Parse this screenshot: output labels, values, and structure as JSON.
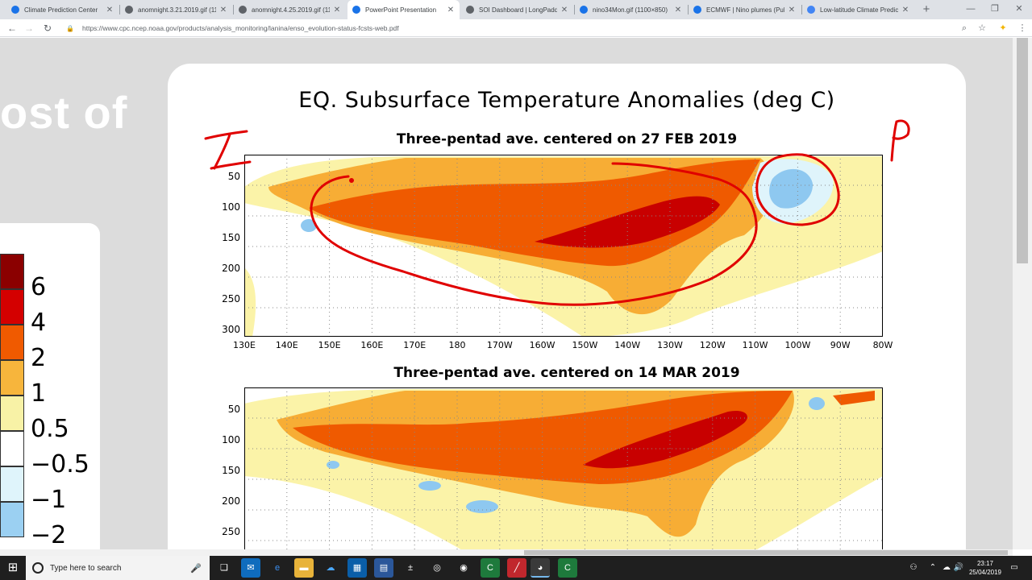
{
  "browser": {
    "tabs": [
      {
        "title": "Climate Prediction Center",
        "favicon_color": "#1a73e8",
        "active": false
      },
      {
        "title": "anomnight.3.21.2019.gif (11...",
        "favicon_color": "#5f6368",
        "active": false
      },
      {
        "title": "anomnight.4.25.2019.gif (11...",
        "favicon_color": "#5f6368",
        "active": false
      },
      {
        "title": "PowerPoint Presentation",
        "favicon_color": "#1a73e8",
        "active": true
      },
      {
        "title": "SOI Dashboard | LongPaddock",
        "favicon_color": "#5f6368",
        "active": false
      },
      {
        "title": "nino34Mon.gif (1100×850)",
        "favicon_color": "#1a73e8",
        "active": false
      },
      {
        "title": "ECMWF | Nino plumes (Pub...",
        "favicon_color": "#1a73e8",
        "active": false
      },
      {
        "title": "Low-latitude Climate Predic...",
        "favicon_color": "#4285f4",
        "active": false
      }
    ],
    "new_tab_icon": "+",
    "window_controls": {
      "minimize": "—",
      "maximize": "❐",
      "close": "✕"
    },
    "url": "https://www.cpc.ncep.noaa.gov/products/analysis_monitoring/lanina/enso_evolution-status-fcsts-web.pdf",
    "nav_icons": {
      "back": "←",
      "forward": "→",
      "reload": "↻",
      "lock": "🔒"
    },
    "toolbar_icons": {
      "zoom": "⌕",
      "star": "☆",
      "extension": "✦",
      "menu": "⋮"
    }
  },
  "slide": {
    "left_text": "ost of",
    "legend": {
      "labels": [
        "6",
        "4",
        "2",
        "1",
        "0.5",
        "−0.5",
        "−1",
        "−2"
      ],
      "colors": [
        "#8b0000",
        "#d40000",
        "#f05a00",
        "#f7b53c",
        "#f8f2a6",
        "#ffffff",
        "#dff4fb",
        "#9bd0f2"
      ]
    }
  },
  "figure": {
    "title": "EQ. Subsurface Temperature Anomalies (deg C)",
    "panels": [
      {
        "title": "Three-pentad ave. centered on 27 FEB 2019"
      },
      {
        "title": "Three-pentad ave. centered on 14 MAR 2019"
      }
    ],
    "y_ticks_top": [
      "50",
      "100",
      "150",
      "200",
      "250",
      "300"
    ],
    "y_ticks_bottom": [
      "50",
      "100",
      "150",
      "200",
      "250"
    ],
    "x_ticks": [
      "130E",
      "140E",
      "150E",
      "160E",
      "170E",
      "180",
      "170W",
      "160W",
      "150W",
      "140W",
      "130W",
      "120W",
      "110W",
      "100W",
      "90W",
      "80W"
    ],
    "colors": {
      "dark_red": "#c80000",
      "red_orange": "#ef5a00",
      "orange": "#f7ad35",
      "light_yellow": "#fbf3a8",
      "light_blue": "#dff4fb",
      "mid_blue": "#8ec8f0"
    }
  },
  "annotations": {
    "left_mark": "I",
    "right_mark": "P",
    "ink_color": "#e00000"
  },
  "taskbar": {
    "search_placeholder": "Type here to search",
    "time": "23:17",
    "date": "25/04/2019"
  }
}
